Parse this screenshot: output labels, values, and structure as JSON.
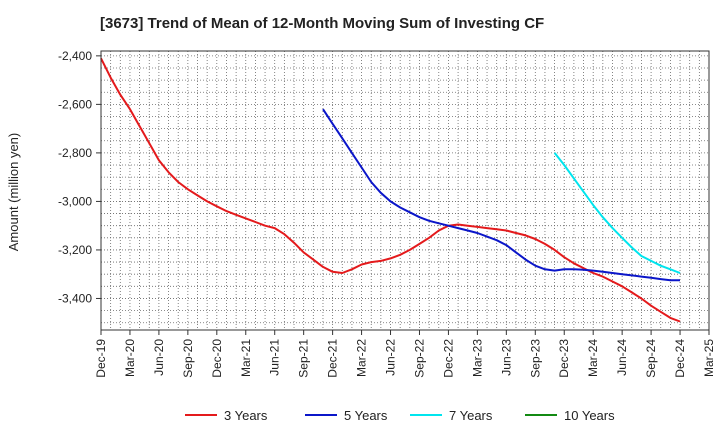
{
  "chart_data": {
    "type": "line",
    "title": "[3673]  Trend of Mean of 12-Month Moving Sum of Investing CF",
    "xlabel": "",
    "ylabel": "Amount (million yen)",
    "ylim": [
      -3530,
      -2380
    ],
    "yticks": [
      -2400,
      -2600,
      -2800,
      -3000,
      -3200,
      -3400
    ],
    "ytick_labels": [
      "-2,400",
      "-2,600",
      "-2,800",
      "-3,000",
      "-3,200",
      "-3,400"
    ],
    "x_range_months": [
      0,
      63
    ],
    "xticks": [
      {
        "label": "Dec-19",
        "m": 0
      },
      {
        "label": "Mar-20",
        "m": 3
      },
      {
        "label": "Jun-20",
        "m": 6
      },
      {
        "label": "Sep-20",
        "m": 9
      },
      {
        "label": "Dec-20",
        "m": 12
      },
      {
        "label": "Mar-21",
        "m": 15
      },
      {
        "label": "Jun-21",
        "m": 18
      },
      {
        "label": "Sep-21",
        "m": 21
      },
      {
        "label": "Dec-21",
        "m": 24
      },
      {
        "label": "Mar-22",
        "m": 27
      },
      {
        "label": "Jun-22",
        "m": 30
      },
      {
        "label": "Sep-22",
        "m": 33
      },
      {
        "label": "Dec-22",
        "m": 36
      },
      {
        "label": "Mar-23",
        "m": 39
      },
      {
        "label": "Jun-23",
        "m": 42
      },
      {
        "label": "Sep-23",
        "m": 45
      },
      {
        "label": "Dec-23",
        "m": 48
      },
      {
        "label": "Mar-24",
        "m": 51
      },
      {
        "label": "Jun-24",
        "m": 54
      },
      {
        "label": "Sep-24",
        "m": 57
      },
      {
        "label": "Dec-24",
        "m": 60
      },
      {
        "label": "Mar-25",
        "m": 63
      }
    ],
    "grid": true,
    "legend_position": "bottom",
    "series": [
      {
        "name": "3 Years",
        "color": "#e41a1c",
        "start_month": 0,
        "values": [
          -2410,
          -2490,
          -2560,
          -2620,
          -2690,
          -2760,
          -2830,
          -2880,
          -2920,
          -2950,
          -2975,
          -3000,
          -3020,
          -3040,
          -3055,
          -3070,
          -3085,
          -3100,
          -3110,
          -3135,
          -3170,
          -3210,
          -3240,
          -3270,
          -3290,
          -3295,
          -3280,
          -3260,
          -3250,
          -3245,
          -3235,
          -3220,
          -3200,
          -3175,
          -3150,
          -3120,
          -3100,
          -3095,
          -3100,
          -3105,
          -3110,
          -3115,
          -3120,
          -3130,
          -3140,
          -3155,
          -3175,
          -3200,
          -3230,
          -3255,
          -3275,
          -3295,
          -3310,
          -3330,
          -3350,
          -3375,
          -3400,
          -3430,
          -3455,
          -3480,
          -3495
        ]
      },
      {
        "name": "5 Years",
        "color": "#0b16c9",
        "start_month": 23,
        "values": [
          -2620,
          -2680,
          -2740,
          -2800,
          -2860,
          -2920,
          -2965,
          -3000,
          -3025,
          -3045,
          -3065,
          -3080,
          -3090,
          -3100,
          -3110,
          -3120,
          -3130,
          -3145,
          -3160,
          -3180,
          -3210,
          -3240,
          -3265,
          -3280,
          -3285,
          -3280,
          -3280,
          -3282,
          -3285,
          -3290,
          -3295,
          -3300,
          -3305,
          -3310,
          -3315,
          -3320,
          -3325,
          -3325
        ]
      },
      {
        "name": "7 Years",
        "color": "#00e5ee",
        "start_month": 47,
        "values": [
          -2800,
          -2850,
          -2905,
          -2960,
          -3015,
          -3065,
          -3110,
          -3150,
          -3190,
          -3225,
          -3245,
          -3265,
          -3280,
          -3295
        ]
      },
      {
        "name": "10 Years",
        "color": "#138a13",
        "start_month": 0,
        "values": []
      }
    ]
  }
}
